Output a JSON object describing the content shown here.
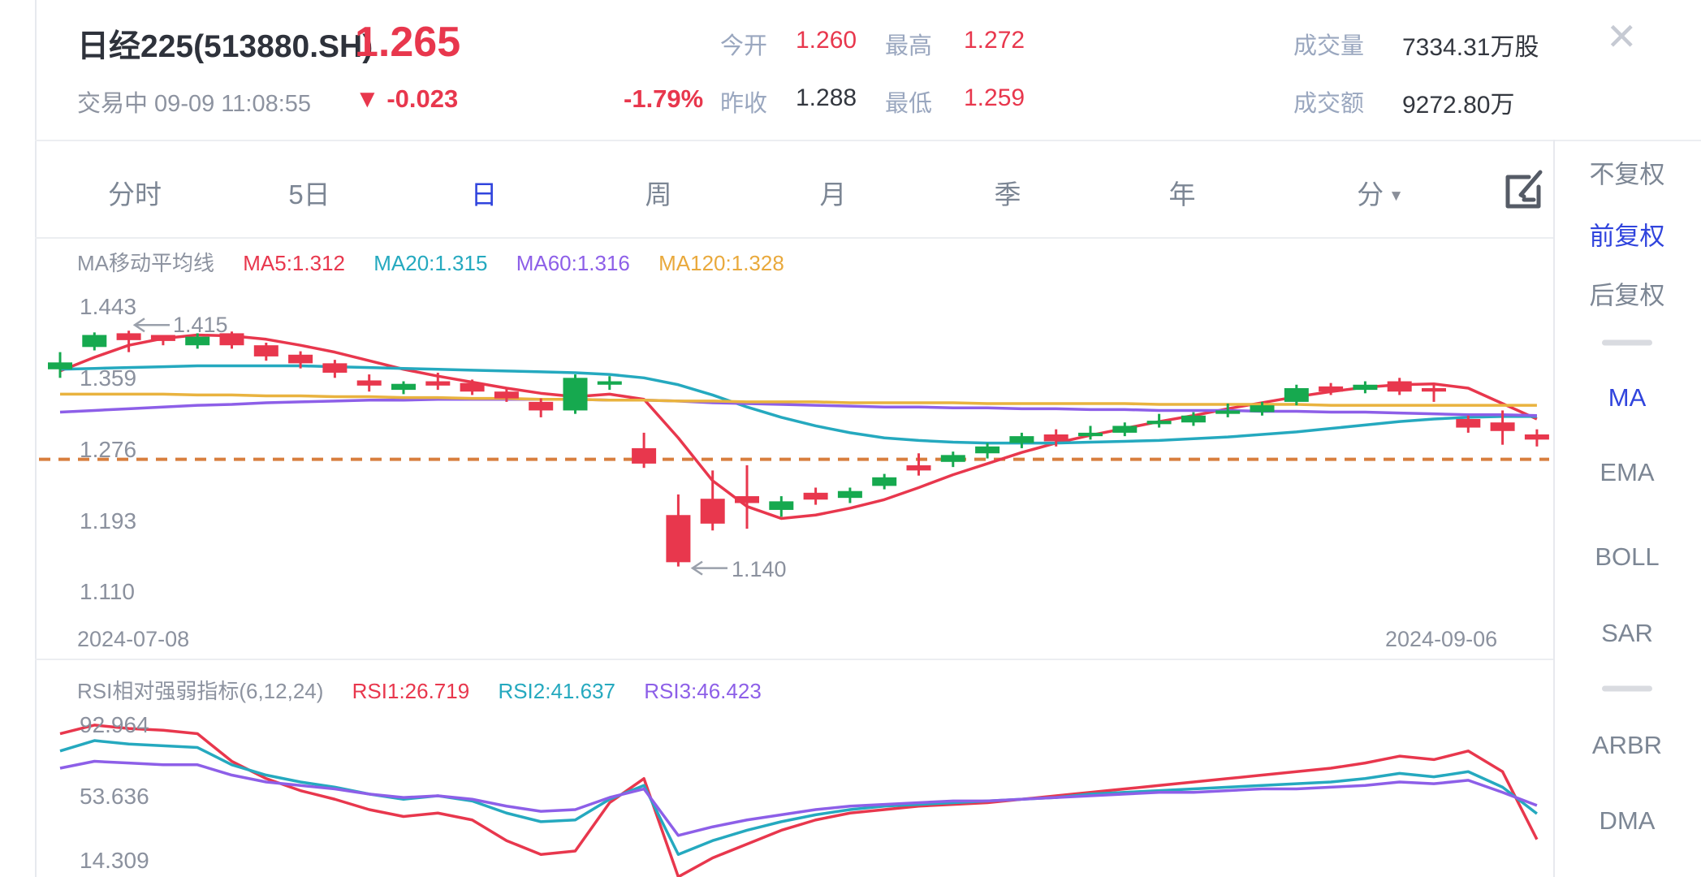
{
  "header": {
    "title": "日经225(513880.SH)",
    "status_line": "交易中 09-09 11:08:55",
    "price": "1.265",
    "change_arrow": "▼",
    "change": "-0.023",
    "change_pct": "-1.79%",
    "close_icon": "✕",
    "stats": {
      "open_label": "今开",
      "open": "1.260",
      "high_label": "最高",
      "high": "1.272",
      "volume_label": "成交量",
      "volume": "7334.31万股",
      "prev_close_label": "昨收",
      "prev_close": "1.288",
      "low_label": "最低",
      "low": "1.259",
      "turnover_label": "成交额",
      "turnover": "9272.80万"
    }
  },
  "tabs": {
    "items": [
      {
        "label": "分时",
        "active": false
      },
      {
        "label": "5日",
        "active": false
      },
      {
        "label": "日",
        "active": true
      },
      {
        "label": "周",
        "active": false
      },
      {
        "label": "月",
        "active": false
      },
      {
        "label": "季",
        "active": false
      },
      {
        "label": "年",
        "active": false
      }
    ],
    "dropdown": {
      "label": "分",
      "arrow": "▼"
    }
  },
  "sidebar": {
    "adjust_items": [
      {
        "label": "不复权",
        "active": false
      },
      {
        "label": "前复权",
        "active": true
      },
      {
        "label": "后复权",
        "active": false
      }
    ],
    "indicator_items": [
      {
        "label": "MA",
        "active": true
      },
      {
        "label": "EMA",
        "active": false
      },
      {
        "label": "BOLL",
        "active": false
      },
      {
        "label": "SAR",
        "active": false
      }
    ],
    "secondary_items": [
      {
        "label": "ARBR",
        "active": false
      },
      {
        "label": "DMA",
        "active": false
      }
    ]
  },
  "main_chart": {
    "indicator_legend": {
      "title": "MA移动平均线",
      "ma5": "MA5:1.312",
      "ma20": "MA20:1.315",
      "ma60": "MA60:1.316",
      "ma120": "MA120:1.328"
    },
    "y_axis_labels": [
      "1.443",
      "1.359",
      "1.276",
      "1.193",
      "1.110"
    ],
    "x_axis_labels": [
      "2024-07-08",
      "2024-09-06"
    ],
    "high_annotation": "1.415",
    "low_annotation": "1.140"
  },
  "rsi_chart": {
    "legend": {
      "title": "RSI相对强弱指标(6,12,24)",
      "rsi1": "RSI1:26.719",
      "rsi2": "RSI2:41.637",
      "rsi3": "RSI3:46.423"
    },
    "y_axis_labels": [
      "92.964",
      "53.636",
      "14.309"
    ]
  },
  "colors": {
    "up": "#16a94f",
    "down": "#e8374d",
    "ma5": "#e8374d",
    "ma20": "#25a9bf",
    "ma60": "#8d5fe8",
    "ma120": "#e9b33f",
    "price_line": "#d87e3e",
    "accent_blue": "#3044dd",
    "annotation_gray": "#9aa0ab"
  },
  "chart_data": {
    "type": "candlestick+line",
    "date_start": "2024-07-08",
    "date_end": "2024-09-06",
    "price_axis_ticks": [
      1.443,
      1.359,
      1.276,
      1.193,
      1.11
    ],
    "current_price_line": 1.265,
    "marked_high": 1.415,
    "marked_low": 1.14,
    "candles_ochl": [
      [
        1.37,
        1.378,
        1.39,
        1.36
      ],
      [
        1.396,
        1.41,
        1.413,
        1.392
      ],
      [
        1.412,
        1.404,
        1.415,
        1.39
      ],
      [
        1.41,
        1.403,
        1.409,
        1.398
      ],
      [
        1.398,
        1.408,
        1.412,
        1.394
      ],
      [
        1.412,
        1.398,
        1.414,
        1.394
      ],
      [
        1.398,
        1.385,
        1.401,
        1.38
      ],
      [
        1.387,
        1.377,
        1.391,
        1.371
      ],
      [
        1.377,
        1.366,
        1.381,
        1.36
      ],
      [
        1.357,
        1.351,
        1.364,
        1.344
      ],
      [
        1.346,
        1.353,
        1.356,
        1.341
      ],
      [
        1.356,
        1.351,
        1.366,
        1.346
      ],
      [
        1.354,
        1.344,
        1.358,
        1.34
      ],
      [
        1.344,
        1.336,
        1.348,
        1.332
      ],
      [
        1.332,
        1.322,
        1.336,
        1.314
      ],
      [
        1.322,
        1.36,
        1.364,
        1.318
      ],
      [
        1.352,
        1.356,
        1.362,
        1.346
      ],
      [
        1.278,
        1.26,
        1.296,
        1.255
      ],
      [
        1.2,
        1.145,
        1.224,
        1.14
      ],
      [
        1.219,
        1.19,
        1.252,
        1.182
      ],
      [
        1.222,
        1.214,
        1.258,
        1.184
      ],
      [
        1.206,
        1.216,
        1.222,
        1.198
      ],
      [
        1.226,
        1.218,
        1.232,
        1.212
      ],
      [
        1.22,
        1.228,
        1.232,
        1.214
      ],
      [
        1.234,
        1.244,
        1.248,
        1.23
      ],
      [
        1.258,
        1.252,
        1.272,
        1.246
      ],
      [
        1.262,
        1.27,
        1.274,
        1.256
      ],
      [
        1.272,
        1.28,
        1.284,
        1.266
      ],
      [
        1.284,
        1.292,
        1.296,
        1.278
      ],
      [
        1.294,
        1.286,
        1.3,
        1.28
      ],
      [
        1.292,
        1.296,
        1.304,
        1.288
      ],
      [
        1.296,
        1.304,
        1.308,
        1.292
      ],
      [
        1.306,
        1.31,
        1.318,
        1.302
      ],
      [
        1.308,
        1.316,
        1.32,
        1.304
      ],
      [
        1.318,
        1.322,
        1.33,
        1.314
      ],
      [
        1.32,
        1.328,
        1.332,
        1.316
      ],
      [
        1.332,
        1.348,
        1.352,
        1.328
      ],
      [
        1.35,
        1.344,
        1.354,
        1.34
      ],
      [
        1.346,
        1.352,
        1.356,
        1.342
      ],
      [
        1.356,
        1.344,
        1.36,
        1.34
      ],
      [
        1.348,
        1.344,
        1.352,
        1.332
      ],
      [
        1.312,
        1.302,
        1.316,
        1.296
      ],
      [
        1.308,
        1.298,
        1.322,
        1.282
      ],
      [
        1.294,
        1.288,
        1.3,
        1.28
      ]
    ],
    "ma_series": [
      {
        "name": "MA5",
        "color_key": "ma5",
        "values": [
          1.368,
          1.384,
          1.398,
          1.406,
          1.41,
          1.409,
          1.405,
          1.398,
          1.39,
          1.38,
          1.37,
          1.362,
          1.355,
          1.348,
          1.342,
          1.338,
          1.341,
          1.335,
          1.29,
          1.24,
          1.21,
          1.196,
          1.2,
          1.208,
          1.218,
          1.232,
          1.247,
          1.26,
          1.273,
          1.284,
          1.293,
          1.301,
          1.309,
          1.316,
          1.324,
          1.331,
          1.338,
          1.344,
          1.349,
          1.352,
          1.353,
          1.348,
          1.33,
          1.312
        ]
      },
      {
        "name": "MA20",
        "color_key": "ma20",
        "values": [
          1.37,
          1.371,
          1.372,
          1.373,
          1.374,
          1.374,
          1.374,
          1.374,
          1.373,
          1.372,
          1.371,
          1.37,
          1.369,
          1.368,
          1.367,
          1.366,
          1.364,
          1.36,
          1.352,
          1.34,
          1.326,
          1.314,
          1.304,
          1.296,
          1.29,
          1.287,
          1.285,
          1.284,
          1.284,
          1.284,
          1.285,
          1.286,
          1.287,
          1.289,
          1.291,
          1.294,
          1.297,
          1.301,
          1.305,
          1.309,
          1.312,
          1.314,
          1.315,
          1.315
        ]
      },
      {
        "name": "MA60",
        "color_key": "ma60",
        "values": [
          1.32,
          1.322,
          1.324,
          1.326,
          1.328,
          1.329,
          1.331,
          1.332,
          1.333,
          1.334,
          1.334,
          1.335,
          1.335,
          1.335,
          1.335,
          1.335,
          1.334,
          1.334,
          1.333,
          1.331,
          1.33,
          1.329,
          1.328,
          1.327,
          1.326,
          1.326,
          1.325,
          1.325,
          1.324,
          1.324,
          1.323,
          1.323,
          1.322,
          1.322,
          1.322,
          1.321,
          1.321,
          1.32,
          1.32,
          1.319,
          1.318,
          1.317,
          1.317,
          1.316
        ]
      },
      {
        "name": "MA120",
        "color_key": "ma120",
        "values": [
          1.341,
          1.341,
          1.341,
          1.341,
          1.34,
          1.34,
          1.339,
          1.339,
          1.338,
          1.338,
          1.337,
          1.337,
          1.336,
          1.336,
          1.335,
          1.335,
          1.334,
          1.334,
          1.333,
          1.333,
          1.332,
          1.332,
          1.332,
          1.331,
          1.331,
          1.331,
          1.331,
          1.33,
          1.33,
          1.33,
          1.33,
          1.33,
          1.329,
          1.329,
          1.329,
          1.329,
          1.329,
          1.328,
          1.328,
          1.328,
          1.328,
          1.328,
          1.328,
          1.328
        ]
      }
    ],
    "rsi": {
      "axis_ticks": [
        92.964,
        53.636,
        14.309
      ],
      "series": [
        {
          "name": "RSI1",
          "color_key": "ma5",
          "values": [
            88,
            93,
            91,
            90,
            88,
            72,
            62,
            55,
            50,
            44,
            40,
            42,
            38,
            26,
            18,
            20,
            48,
            62,
            5,
            16,
            24,
            32,
            38,
            42,
            44,
            46,
            47,
            48,
            50,
            52,
            54,
            56,
            58,
            60,
            62,
            64,
            66,
            68,
            71,
            75,
            73,
            78,
            66,
            26.719
          ]
        },
        {
          "name": "RSI2",
          "color_key": "ma20",
          "values": [
            78,
            84,
            82,
            81,
            80,
            70,
            64,
            60,
            57,
            53,
            50,
            52,
            49,
            42,
            37,
            38,
            50,
            58,
            18,
            26,
            32,
            37,
            41,
            44,
            46,
            47,
            48,
            49,
            50,
            51,
            53,
            54,
            55,
            56,
            57,
            58,
            59,
            60,
            62,
            65,
            63,
            66,
            57,
            41.637
          ]
        },
        {
          "name": "RSI3",
          "color_key": "ma60",
          "values": [
            68,
            72,
            71,
            70,
            70,
            64,
            60,
            58,
            56,
            53,
            51,
            52,
            50,
            46,
            43,
            44,
            51,
            56,
            29,
            34,
            38,
            41,
            44,
            46,
            47,
            48,
            49,
            49,
            50,
            51,
            52,
            53,
            54,
            54,
            55,
            56,
            56,
            57,
            58,
            60,
            59,
            61,
            54,
            46.423
          ]
        }
      ]
    }
  }
}
